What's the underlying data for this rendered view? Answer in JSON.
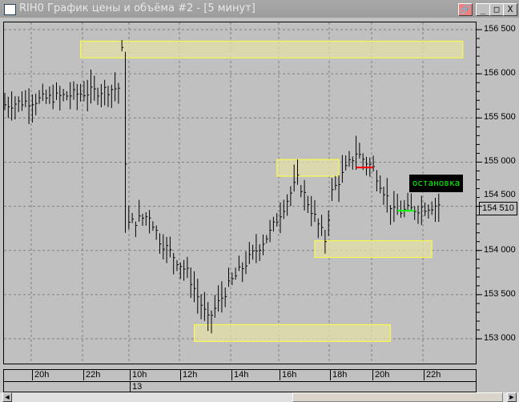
{
  "window": {
    "title": "RIH0 График цены и объёма #2 - [5 минут]",
    "buttons": {
      "link": "🔗",
      "minimize": "_",
      "maximize": "□",
      "close": "X"
    }
  },
  "colors": {
    "zone_fill": "#e6e0a8",
    "zone_border": "#ffff40",
    "bar": "#000000",
    "stop_marker": "#ff0000",
    "entry_marker": "#00ff00",
    "label_bg": "#000000",
    "label_text": "#00ff00"
  },
  "chart_data": {
    "type": "ohlc-bar",
    "price_ticks": [
      "156 500",
      "156 000",
      "155 500",
      "155 000",
      "154 500",
      "154 000",
      "153 500",
      "153 000"
    ],
    "price_tick_values": [
      156500,
      156000,
      155500,
      155000,
      154500,
      154000,
      153500,
      153000
    ],
    "ylim": [
      152900,
      156600
    ],
    "time_labels": [
      "20h",
      "22h",
      "10h",
      "12h",
      "14h",
      "16h",
      "18h",
      "20h",
      "22h"
    ],
    "date_labels": [
      {
        "after": "22h",
        "text": "13"
      }
    ],
    "current_price": "154 510",
    "approx_path": [
      [
        0,
        155650
      ],
      [
        33,
        155840
      ],
      [
        34,
        156250
      ],
      [
        35,
        155020
      ],
      [
        36,
        154300
      ],
      [
        42,
        154400
      ],
      [
        45,
        154120
      ],
      [
        53,
        153750
      ],
      [
        59,
        153210
      ],
      [
        66,
        153660
      ],
      [
        77,
        154200
      ],
      [
        85,
        154800
      ],
      [
        93,
        154120
      ],
      [
        95,
        154660
      ],
      [
        102,
        155110
      ],
      [
        107,
        154930
      ],
      [
        113,
        154430
      ],
      [
        126,
        154520
      ]
    ],
    "zones": [
      {
        "from_bar": 22,
        "to_bar": 133,
        "high": 156370,
        "low": 156180
      },
      {
        "from_bar": 79,
        "to_bar": 97,
        "high": 155030,
        "low": 154840
      },
      {
        "from_bar": 90,
        "to_bar": 124,
        "high": 154110,
        "low": 153920
      },
      {
        "from_bar": 55,
        "to_bar": 112,
        "high": 153160,
        "low": 152970
      }
    ],
    "stop_level": {
      "price": 154940,
      "from_bar": 102,
      "to_bar": 107
    },
    "entry_level": {
      "price": 154450,
      "from_bar": 114,
      "to_bar": 119
    },
    "annotation": "остановка"
  }
}
